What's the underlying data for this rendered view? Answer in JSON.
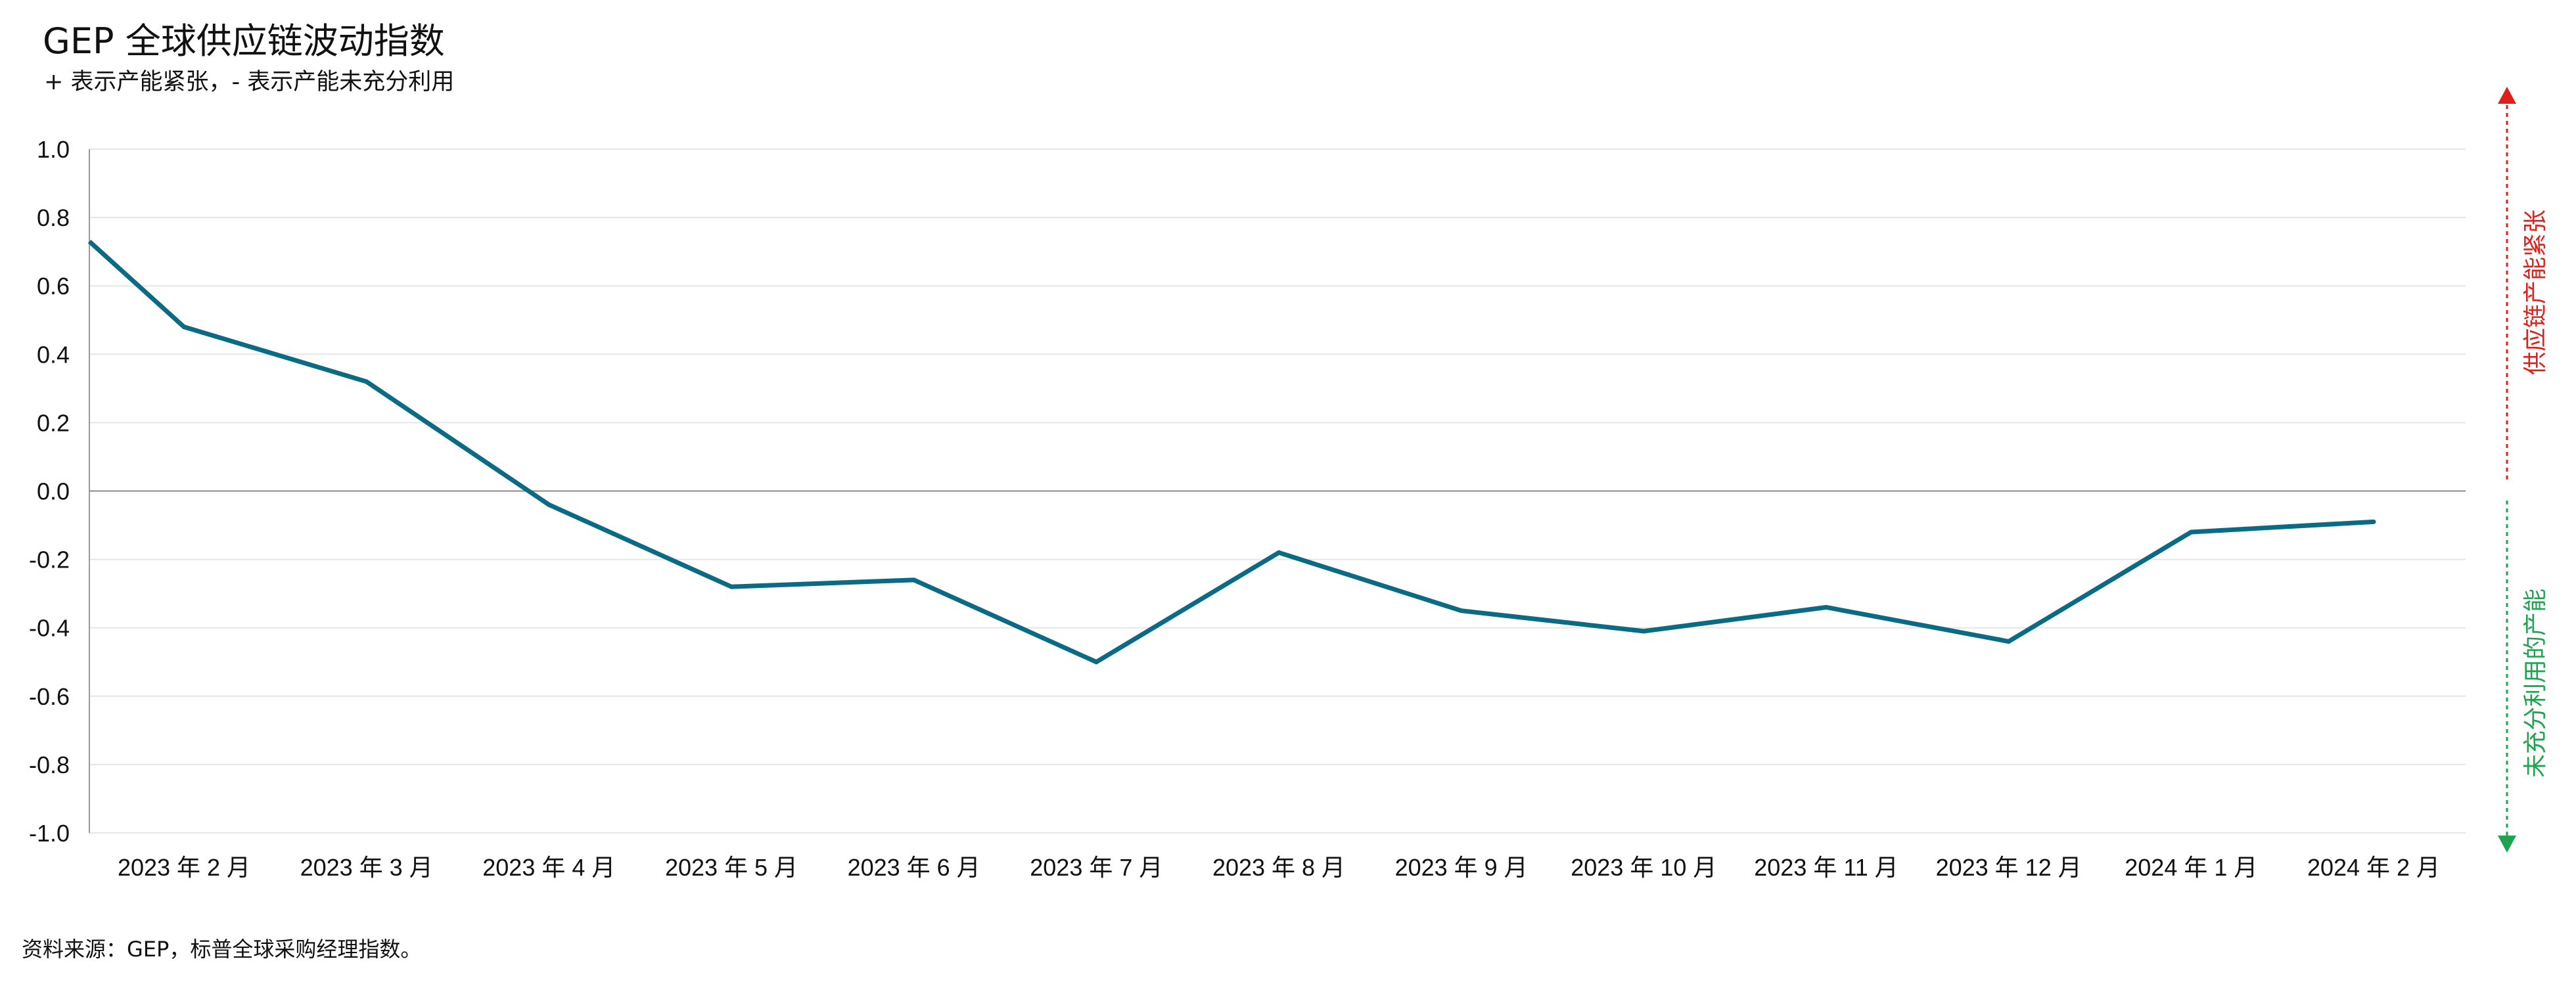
{
  "title": "GEP 全球供应链波动指数",
  "subtitle": "+ 表示产能紧张，- 表示产能未充分利用",
  "source": "资料来源：GEP，标普全球采购经理指数。",
  "side_labels": {
    "top": "供应链产能紧张",
    "bottom": "未充分利用的产能",
    "top_color": "#e0201b",
    "bottom_color": "#1fa351"
  },
  "chart_data": {
    "type": "line",
    "categories": [
      "2023 年 2 月",
      "2023 年 3 月",
      "2023 年 4 月",
      "2023 年 5 月",
      "2023 年 6 月",
      "2023 年 7 月",
      "2023 年 8 月",
      "2023 年 9 月",
      "2023 年 10 月",
      "2023 年 11 月",
      "2023 年 12 月",
      "2024 年 1 月",
      "2024 年 2 月"
    ],
    "series": [
      {
        "values": [
          0.48,
          0.32,
          -0.04,
          -0.28,
          -0.26,
          -0.5,
          -0.18,
          -0.35,
          -0.41,
          -0.34,
          -0.44,
          -0.12,
          -0.09
        ],
        "color": "#0b6b85"
      }
    ],
    "line_start_value": 0.73,
    "yticks": [
      "1.0",
      "0.8",
      "0.6",
      "0.4",
      "0.2",
      "0.0",
      "-0.2",
      "-0.4",
      "-0.6",
      "-0.8",
      "-1.0"
    ],
    "ylim": [
      -1.0,
      1.0
    ],
    "grid": true,
    "zero_line": true
  }
}
